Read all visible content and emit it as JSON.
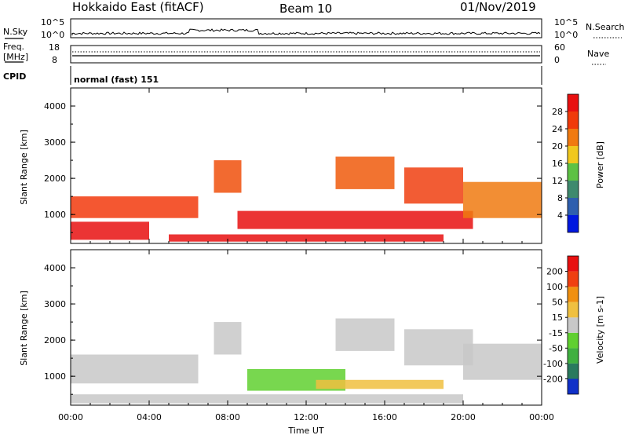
{
  "header": {
    "title": "Hokkaido East (fitACF)",
    "beam": "Beam 10",
    "date": "01/Nov/2019"
  },
  "top_panels": {
    "nsky_label": "N.Sky",
    "nsky_ticks": [
      "10^5",
      "10^0"
    ],
    "nsearch_label": "N.Search",
    "nsearch_ticks": [
      "10^5",
      "10^0"
    ],
    "freq_label_1": "Freq.",
    "freq_label_2": "[MHz]",
    "freq_ticks": [
      "18",
      "8"
    ],
    "nave_label": "Nave",
    "nave_ticks": [
      "60",
      "0"
    ],
    "cpid_label": "CPID",
    "cpid_value": "normal (fast) 151"
  },
  "chart_data": [
    {
      "type": "heatmap",
      "name": "power",
      "ylabel": "Slant Range [km]",
      "ylim": [
        200,
        4500
      ],
      "yticks": [
        "1000",
        "2000",
        "3000",
        "4000"
      ],
      "xlim_hours": [
        0,
        24
      ],
      "colorbar_label": "Power [dB]",
      "colorbar_ticks": [
        "4",
        "8",
        "12",
        "16",
        "20",
        "24",
        "28"
      ],
      "colorbar_colors": [
        "#0018e0",
        "#2f5fae",
        "#3f8a6e",
        "#5dc244",
        "#f0c81e",
        "#f07a10",
        "#f03a0a",
        "#e81010"
      ],
      "bands": [
        {
          "t0": 0.0,
          "t1": 6.5,
          "r0": 900,
          "r1": 1500,
          "color": "#f23a0d"
        },
        {
          "t0": 0.0,
          "t1": 4.0,
          "r0": 300,
          "r1": 800,
          "color": "#e81010"
        },
        {
          "t0": 7.3,
          "t1": 8.7,
          "r0": 1600,
          "r1": 2500,
          "color": "#f0500c"
        },
        {
          "t0": 8.5,
          "t1": 20.5,
          "r0": 600,
          "r1": 1100,
          "color": "#e81010"
        },
        {
          "t0": 13.5,
          "t1": 16.5,
          "r0": 1700,
          "r1": 2600,
          "color": "#f05a0c"
        },
        {
          "t0": 17.0,
          "t1": 20.0,
          "r0": 1300,
          "r1": 2300,
          "color": "#f04010"
        },
        {
          "t0": 20.0,
          "t1": 24.0,
          "r0": 900,
          "r1": 1900,
          "color": "#f07a10"
        },
        {
          "t0": 5.0,
          "t1": 19.0,
          "r0": 250,
          "r1": 450,
          "color": "#e81010"
        }
      ]
    },
    {
      "type": "heatmap",
      "name": "velocity",
      "ylabel": "Slant Range [km]",
      "ylim": [
        200,
        4500
      ],
      "yticks": [
        "1000",
        "2000",
        "3000",
        "4000"
      ],
      "xlabel": "Time UT",
      "xticks": [
        "00:00",
        "04:00",
        "08:00",
        "12:00",
        "16:00",
        "20:00",
        "00:00"
      ],
      "xlim_hours": [
        0,
        24
      ],
      "colorbar_label": "Velocity [m s-1]",
      "colorbar_ticks": [
        "200",
        "100",
        "50",
        "15",
        "-15",
        "-50",
        "-100",
        "-200"
      ],
      "colorbar_colors": [
        "#1030c8",
        "#2a7a5e",
        "#40b040",
        "#60d030",
        "#c8c8c8",
        "#f0c040",
        "#f09010",
        "#f04010",
        "#e81010"
      ],
      "bands": [
        {
          "t0": 0.0,
          "t1": 6.5,
          "r0": 800,
          "r1": 1600,
          "color": "#c8c8c8"
        },
        {
          "t0": 7.3,
          "t1": 8.7,
          "r0": 1600,
          "r1": 2500,
          "color": "#c8c8c8"
        },
        {
          "t0": 9.0,
          "t1": 14.0,
          "r0": 600,
          "r1": 1200,
          "color": "#60d030"
        },
        {
          "t0": 13.5,
          "t1": 16.5,
          "r0": 1700,
          "r1": 2600,
          "color": "#c8c8c8"
        },
        {
          "t0": 12.5,
          "t1": 19.0,
          "r0": 650,
          "r1": 900,
          "color": "#f0c040"
        },
        {
          "t0": 17.0,
          "t1": 20.5,
          "r0": 1300,
          "r1": 2300,
          "color": "#c8c8c8"
        },
        {
          "t0": 20.0,
          "t1": 24.0,
          "r0": 900,
          "r1": 1900,
          "color": "#c8c8c8"
        },
        {
          "t0": 0.0,
          "t1": 20.0,
          "r0": 250,
          "r1": 500,
          "color": "#c8c8c8"
        }
      ]
    }
  ]
}
